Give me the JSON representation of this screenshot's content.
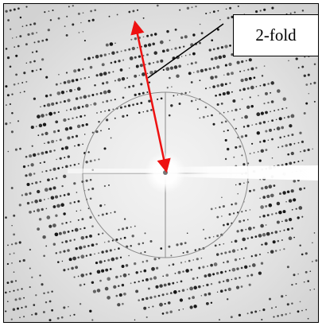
{
  "figure": {
    "annotation_label": "2-fold",
    "colors": {
      "background": "#ebebeb",
      "spot": "#111111",
      "arrow": "#ee1111",
      "callout_line": "#000000",
      "label_box_fill": "#ffffff",
      "beamstop": "#ffffff"
    },
    "icons": [
      "double-headed-arrow-icon"
    ]
  }
}
